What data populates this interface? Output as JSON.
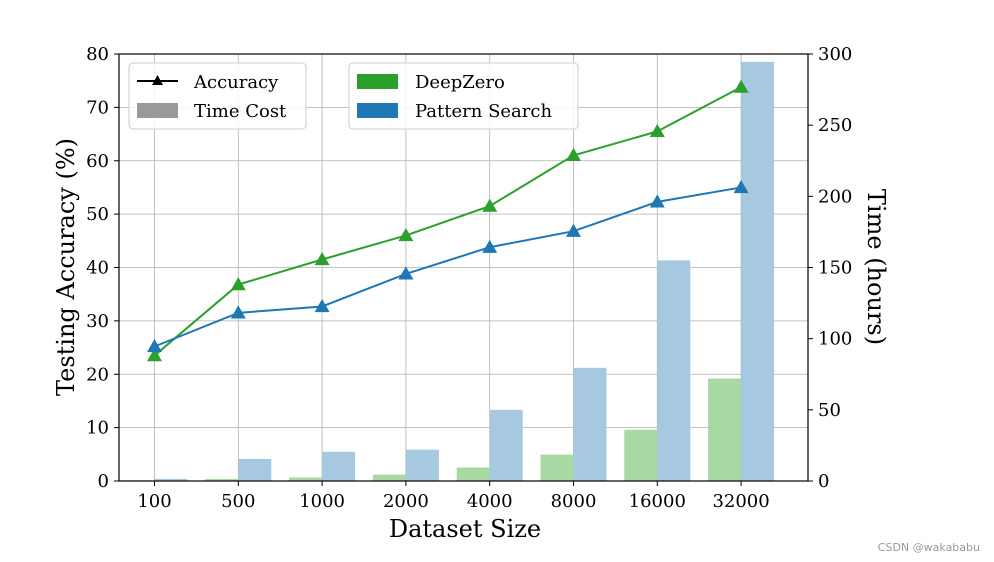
{
  "chart_data": {
    "type": "bar+line",
    "categories": [
      "100",
      "500",
      "1000",
      "2000",
      "4000",
      "8000",
      "16000",
      "32000"
    ],
    "xlabel": "Dataset Size",
    "ylabel_left": "Testing Accuracy (%)",
    "ylabel_right": "Time (hours)",
    "ylim_left": [
      0,
      80
    ],
    "ylim_right": [
      0,
      300
    ],
    "yticks_left": [
      "0",
      "10",
      "20",
      "30",
      "40",
      "50",
      "60",
      "70",
      "80"
    ],
    "yticks_right": [
      "0",
      "50",
      "100",
      "150",
      "200",
      "250",
      "300"
    ],
    "grid": true,
    "series": [
      {
        "name": "DeepZero",
        "color": "#2ca02c",
        "bar_color": "#a9d9a2",
        "accuracy": [
          23.5,
          36.8,
          41.5,
          46.0,
          51.5,
          61.0,
          65.5,
          73.8
        ],
        "time_hours": [
          0.5,
          1.5,
          2.5,
          4.5,
          9.5,
          18.5,
          36.0,
          72.0
        ]
      },
      {
        "name": "Pattern Search",
        "color": "#1f77b4",
        "bar_color": "#a6c8e1",
        "accuracy": [
          25.2,
          31.5,
          32.7,
          38.8,
          43.8,
          46.8,
          52.3,
          55.0
        ],
        "time_hours": [
          1.5,
          15.5,
          20.5,
          22.0,
          50.0,
          79.5,
          155.0,
          294.5
        ]
      }
    ],
    "legend": {
      "placement": "top-left",
      "style_entries": [
        {
          "label": "Accuracy",
          "kind": "line-marker"
        },
        {
          "label": "Time Cost",
          "kind": "bar"
        }
      ],
      "method_entries": [
        {
          "label": "DeepZero",
          "color": "#2ca02c"
        },
        {
          "label": "Pattern Search",
          "color": "#1f77b4"
        }
      ]
    }
  },
  "watermark": "CSDN @wakababu"
}
